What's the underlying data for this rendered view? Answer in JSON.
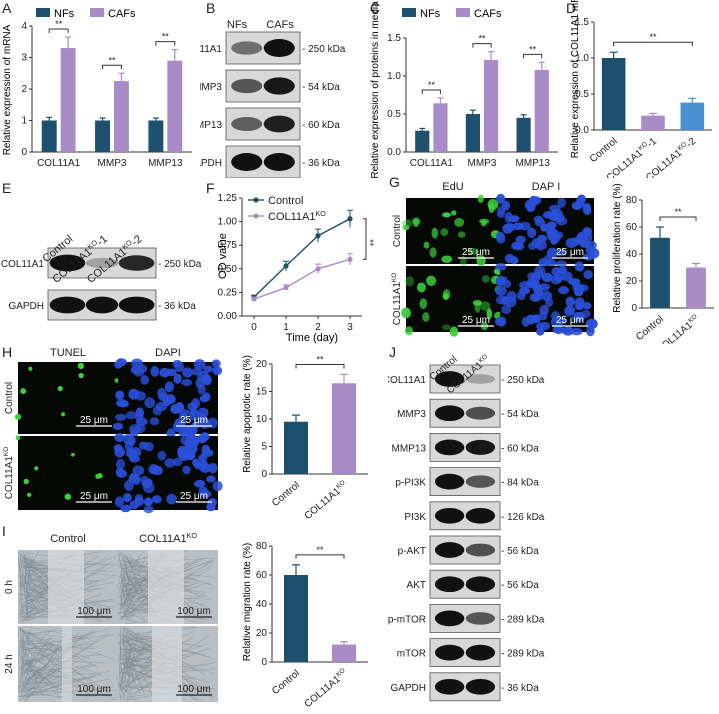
{
  "colors": {
    "nf": "#1d4f6e",
    "caf": "#a98bc8",
    "ko1": "#a98bc8",
    "ko2": "#4a90d0",
    "control": "#1d4f6e",
    "ko": "#a98bc8"
  },
  "panels": {
    "A": {
      "label": "A",
      "legend": [
        "NFs",
        "CAFs"
      ]
    },
    "B": {
      "label": "B",
      "col_headers": [
        "NFs",
        "CAFs"
      ]
    },
    "C": {
      "label": "C",
      "legend": [
        "NFs",
        "CAFs"
      ]
    },
    "D": {
      "label": "D"
    },
    "E": {
      "label": "E",
      "col_headers": [
        "Control",
        "COL11A1KO-1",
        "COL11A1KO-2"
      ]
    },
    "F": {
      "label": "F"
    },
    "G": {
      "label": "G",
      "col_headers": [
        "EdU",
        "DAP I"
      ],
      "row_labels": [
        "Control",
        "COL11A1KO"
      ],
      "scale": "25 μm"
    },
    "H": {
      "label": "H",
      "col_headers": [
        "TUNEL",
        "DAPI"
      ],
      "row_labels": [
        "Control",
        "COL11A1KO"
      ],
      "scale": "25 μm"
    },
    "I": {
      "label": "I",
      "col_headers": [
        "Control",
        "COL11A1KO"
      ],
      "row_labels": [
        "0 h",
        "24 h"
      ],
      "scale": "100 μm"
    },
    "J": {
      "label": "J",
      "col_headers": [
        "Control",
        "COL11A1KO"
      ]
    }
  },
  "blots": {
    "B": [
      {
        "protein": "COL11A1",
        "size": "250 kDa"
      },
      {
        "protein": "MMP3",
        "size": "54 kDa"
      },
      {
        "protein": "MMP13",
        "size": "60 kDa"
      },
      {
        "protein": "GAPDH",
        "size": "36 kDa"
      }
    ],
    "E": [
      {
        "protein": "COL11A1",
        "size": "250 kDa"
      },
      {
        "protein": "GAPDH",
        "size": "36 kDa"
      }
    ],
    "J": [
      {
        "protein": "COL11A1",
        "size": "250 kDa"
      },
      {
        "protein": "MMP3",
        "size": "54 kDa"
      },
      {
        "protein": "MMP13",
        "size": "60 kDa"
      },
      {
        "protein": "p-PI3K",
        "size": "84 kDa"
      },
      {
        "protein": "PI3K",
        "size": "126 kDa"
      },
      {
        "protein": "p-AKT",
        "size": "56 kDa"
      },
      {
        "protein": "AKT",
        "size": "56 kDa"
      },
      {
        "protein": "p-mTOR",
        "size": "289 kDa"
      },
      {
        "protein": "mTOR",
        "size": "289 kDa"
      },
      {
        "protein": "GAPDH",
        "size": "36 kDa"
      }
    ]
  },
  "chart_data": [
    {
      "id": "A",
      "type": "bar",
      "ylabel": "Relative expression of mRNA",
      "ylim": [
        0,
        4
      ],
      "yticks": [
        0,
        1,
        2,
        3,
        4
      ],
      "categories": [
        "COL11A1",
        "MMP3",
        "MMP13"
      ],
      "series": [
        {
          "name": "NFs",
          "values": [
            1.0,
            1.0,
            1.0
          ],
          "errors": [
            0.1,
            0.08,
            0.08
          ]
        },
        {
          "name": "CAFs",
          "values": [
            3.3,
            2.25,
            2.9
          ],
          "errors": [
            0.35,
            0.25,
            0.35
          ]
        }
      ],
      "annotations": [
        "**",
        "**",
        "**"
      ]
    },
    {
      "id": "C",
      "type": "bar",
      "ylabel": "Relative expression of proteins in media",
      "ylim": [
        0,
        1.5
      ],
      "yticks": [
        0.0,
        0.5,
        1.0,
        1.5
      ],
      "categories": [
        "COL11A1",
        "MMP3",
        "MMP13"
      ],
      "series": [
        {
          "name": "NFs",
          "values": [
            0.28,
            0.5,
            0.45
          ],
          "errors": [
            0.03,
            0.05,
            0.04
          ]
        },
        {
          "name": "CAFs",
          "values": [
            0.64,
            1.21,
            1.08
          ],
          "errors": [
            0.07,
            0.11,
            0.1
          ]
        }
      ],
      "annotations": [
        "**",
        "**",
        "**"
      ]
    },
    {
      "id": "D",
      "type": "bar",
      "ylabel": "Relative expression of COL11A1 mRNA",
      "ylim": [
        0,
        1.5
      ],
      "yticks": [
        0.0,
        0.5,
        1.0,
        1.5
      ],
      "categories": [
        "Control",
        "COL11A1KO-1",
        "COL11A1KO-2"
      ],
      "values": [
        1.0,
        0.2,
        0.38
      ],
      "errors": [
        0.08,
        0.03,
        0.06
      ],
      "annotations": [
        "**"
      ]
    },
    {
      "id": "F",
      "type": "line",
      "xlabel": "Time (day)",
      "ylabel": "OD value",
      "ylim": [
        0,
        1.25
      ],
      "yticks": [
        0.0,
        0.25,
        0.5,
        0.75,
        1.0,
        1.25
      ],
      "x": [
        0,
        1,
        2,
        3
      ],
      "series": [
        {
          "name": "Control",
          "values": [
            0.2,
            0.53,
            0.85,
            1.03
          ],
          "errors": [
            0.02,
            0.05,
            0.07,
            0.09
          ]
        },
        {
          "name": "COL11A1KO",
          "values": [
            0.18,
            0.3,
            0.5,
            0.6
          ],
          "errors": [
            0.02,
            0.03,
            0.05,
            0.06
          ]
        }
      ],
      "annotations": [
        "**"
      ]
    },
    {
      "id": "G",
      "type": "bar",
      "ylabel": "Relative proliferation rate (%)",
      "ylim": [
        0,
        80
      ],
      "yticks": [
        0,
        20,
        40,
        60,
        80
      ],
      "categories": [
        "Control",
        "COL11A1KO"
      ],
      "values": [
        52,
        30
      ],
      "errors": [
        8,
        3
      ],
      "annotations": [
        "**"
      ]
    },
    {
      "id": "H",
      "type": "bar",
      "ylabel": "Relative apoptotic rate (%)",
      "ylim": [
        0,
        20
      ],
      "yticks": [
        0,
        5,
        10,
        15,
        20
      ],
      "categories": [
        "Control",
        "COL11A1KO"
      ],
      "values": [
        9.5,
        16.5
      ],
      "errors": [
        1.2,
        1.6
      ],
      "annotations": [
        "**"
      ]
    },
    {
      "id": "I",
      "type": "bar",
      "ylabel": "Relative migration rate (%)",
      "ylim": [
        0,
        80
      ],
      "yticks": [
        0,
        20,
        40,
        60,
        80
      ],
      "categories": [
        "Control",
        "COL11A1KO"
      ],
      "values": [
        60,
        12
      ],
      "errors": [
        7,
        2
      ],
      "annotations": [
        "**"
      ]
    }
  ]
}
